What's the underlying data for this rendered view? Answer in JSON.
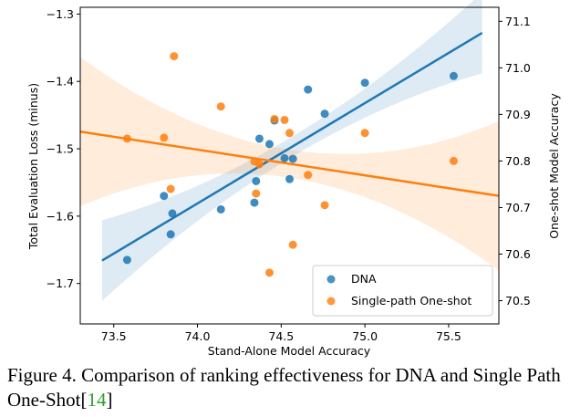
{
  "chart_data": {
    "type": "scatter",
    "xlabel": "Stand-Alone Model Accuracy",
    "ylabel": "Total Evaluation Loss (minus)",
    "y2label": "One-shot Model Accuracy",
    "xlim": [
      73.3,
      75.8
    ],
    "ylim": [
      -1.76,
      -1.29
    ],
    "y2lim": [
      70.45,
      71.13
    ],
    "x_ticks": [
      "73.5",
      "74.0",
      "74.5",
      "75.0",
      "75.5"
    ],
    "y_ticks": [
      "−1.3",
      "−1.4",
      "−1.5",
      "−1.6",
      "−1.7"
    ],
    "y2_ticks": [
      "71.1",
      "71.0",
      "70.9",
      "70.8",
      "70.7",
      "70.6",
      "70.5"
    ],
    "grid": false,
    "legend_position": "lower-right",
    "series": [
      {
        "name": "DNA",
        "color": "#1f77b4",
        "axis": "left",
        "points": [
          [
            73.58,
            -1.665
          ],
          [
            73.8,
            -1.57
          ],
          [
            73.84,
            -1.627
          ],
          [
            73.85,
            -1.596
          ],
          [
            74.14,
            -1.59
          ],
          [
            74.34,
            -1.58
          ],
          [
            74.35,
            -1.548
          ],
          [
            74.37,
            -1.485
          ],
          [
            74.43,
            -1.493
          ],
          [
            74.46,
            -1.458
          ],
          [
            74.52,
            -1.514
          ],
          [
            74.55,
            -1.545
          ],
          [
            74.57,
            -1.515
          ],
          [
            74.66,
            -1.412
          ],
          [
            74.76,
            -1.448
          ],
          [
            75.0,
            -1.402
          ],
          [
            75.53,
            -1.392
          ]
        ],
        "fit": {
          "x": [
            73.43,
            75.7
          ],
          "y": [
            -1.666,
            -1.328
          ]
        }
      },
      {
        "name": "Single-path One-shot",
        "color": "#ff7f0e",
        "axis": "right",
        "points": [
          [
            73.58,
            70.848
          ],
          [
            73.8,
            70.85
          ],
          [
            73.84,
            70.74
          ],
          [
            73.86,
            71.025
          ],
          [
            74.14,
            70.917
          ],
          [
            74.34,
            70.799
          ],
          [
            74.35,
            70.73
          ],
          [
            74.37,
            70.793
          ],
          [
            74.43,
            70.56
          ],
          [
            74.46,
            70.89
          ],
          [
            74.52,
            70.888
          ],
          [
            74.55,
            70.86
          ],
          [
            74.57,
            70.62
          ],
          [
            74.66,
            70.77
          ],
          [
            74.76,
            70.705
          ],
          [
            75.0,
            70.86
          ],
          [
            75.53,
            70.8
          ]
        ],
        "fit": {
          "x": [
            73.3,
            75.8
          ],
          "y": [
            70.863,
            70.725
          ]
        }
      }
    ]
  },
  "caption": {
    "text": "Figure 4. Comparison of ranking effectiveness for DNA and Single Path One-Shot[",
    "ref": "14",
    "close": "]"
  }
}
